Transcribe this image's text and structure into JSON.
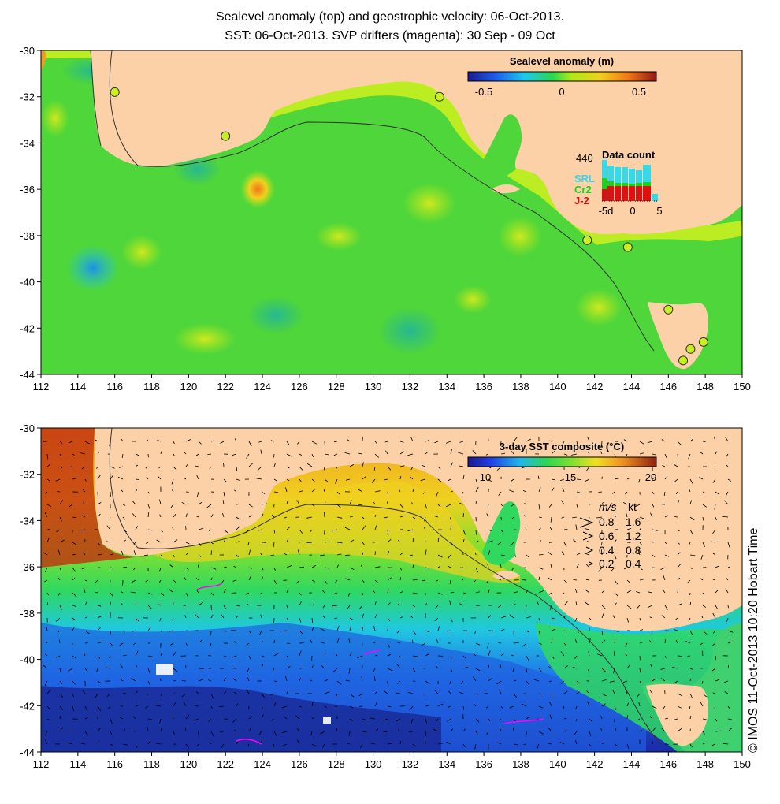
{
  "header": {
    "title_line1": "Sealevel anomaly (top) and geostrophic velocity: 06-Oct-2013.",
    "title_line2": "SST: 06-Oct-2013. SVP drifters (magenta): 30 Sep - 09 Oct"
  },
  "axes": {
    "lon_ticks": [
      "112",
      "114",
      "116",
      "118",
      "120",
      "122",
      "124",
      "126",
      "128",
      "130",
      "132",
      "134",
      "136",
      "138",
      "140",
      "142",
      "144",
      "146",
      "148",
      "150"
    ],
    "lat_ticks": [
      "-30",
      "-32",
      "-34",
      "-36",
      "-38",
      "-40",
      "-42",
      "-44"
    ]
  },
  "top_map": {
    "colorbar": {
      "title": "Sealevel anomaly (m)",
      "ticks": [
        "-0.5",
        "0",
        "0.5"
      ],
      "range": [
        -0.6,
        0.6
      ]
    },
    "data_count": {
      "title": "Data count",
      "max_label": "440",
      "legend": [
        {
          "label": "SRL",
          "color": "#37d8e8"
        },
        {
          "label": "Cr2",
          "color": "#19d219"
        },
        {
          "label": "J-2",
          "color": "#e01010"
        }
      ],
      "x_ticks": [
        "-5d",
        "0",
        "5"
      ]
    },
    "tide_gauges": [
      [
        116,
        -31.8
      ],
      [
        122,
        -33.7
      ],
      [
        133.6,
        -32
      ],
      [
        141.6,
        -38.2
      ],
      [
        143.8,
        -38.5
      ],
      [
        146,
        -41.2
      ],
      [
        147.2,
        -42.9
      ],
      [
        147.9,
        -42.6
      ],
      [
        146.8,
        -43.4
      ]
    ]
  },
  "bottom_map": {
    "colorbar": {
      "title": "3-day SST composite (°C)",
      "ticks": [
        "10",
        "15",
        "20"
      ],
      "range": [
        9,
        20
      ]
    },
    "velocity_legend": {
      "headers": [
        "m/s",
        "kt"
      ],
      "rows": [
        {
          "ms": "0.8",
          "kt": "1.6"
        },
        {
          "ms": "0.6",
          "kt": "1.2"
        },
        {
          "ms": "0.4",
          "kt": "0.8"
        },
        {
          "ms": "0.2",
          "kt": "0.4"
        }
      ]
    }
  },
  "credit": "© IMOS 11-Oct-2013 10:20 Hobart Time",
  "colors": {
    "land": "#fcd1a7",
    "ocean_mid": "#4fd63a",
    "coast_strip": "#c8f020"
  }
}
